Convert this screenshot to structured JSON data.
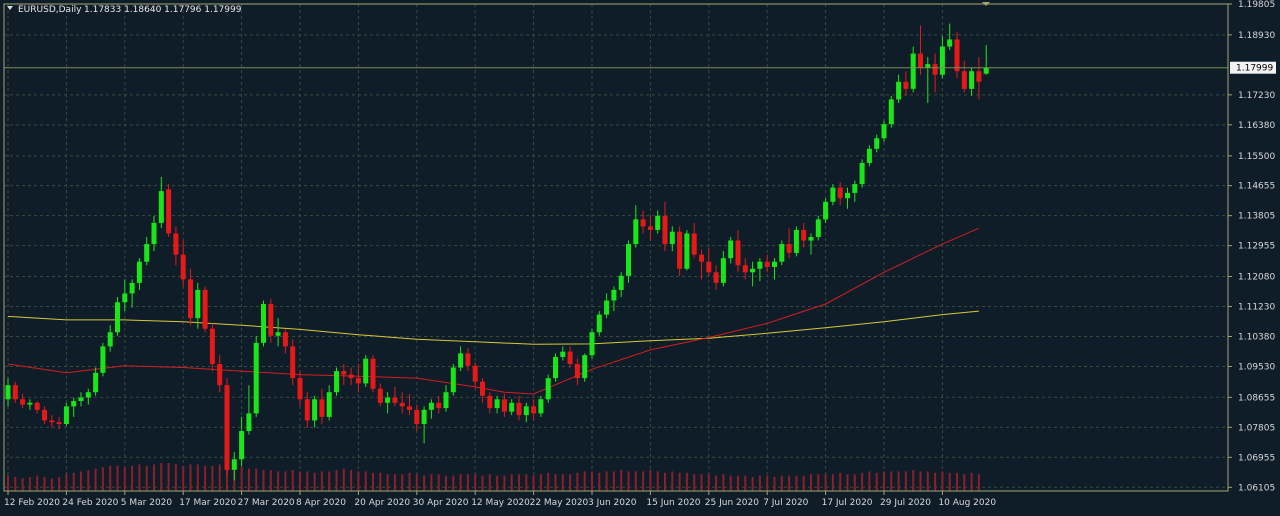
{
  "header": {
    "symbol": "EURUSD,Daily",
    "ohlc": "1.17833 1.18640 1.17796 1.17999"
  },
  "colors": {
    "background": "#0f1d29",
    "grid": "#3b4a3e",
    "frame": "#a5a56e",
    "bull": "#19e619",
    "bear": "#e61919",
    "ma_fast": "#d21e1e",
    "ma_slow": "#d8c83a",
    "volume": "#8b1f2a",
    "text": "#dcdcdc",
    "current_price_line": "#7f8b55",
    "current_price_box": "#f2f2f2"
  },
  "chart_data": {
    "type": "candlestick",
    "title": "EURUSD,Daily",
    "ylim": [
      1.06,
      1.19805
    ],
    "y_ticks": [
      "1.19805",
      "1.18930",
      "1.17230",
      "1.16380",
      "1.15500",
      "1.14655",
      "1.13805",
      "1.12955",
      "1.12080",
      "1.11230",
      "1.10380",
      "1.09530",
      "1.08655",
      "1.07805",
      "1.06955",
      "1.06105"
    ],
    "x_ticks": [
      "12 Feb 2020",
      "24 Feb 2020",
      "5 Mar 2020",
      "17 Mar 2020",
      "27 Mar 2020",
      "8 Apr 2020",
      "20 Apr 2020",
      "30 Apr 2020",
      "12 May 2020",
      "22 May 2020",
      "3 Jun 2020",
      "15 Jun 2020",
      "25 Jun 2020",
      "7 Jul 2020",
      "17 Jul 2020",
      "29 Jul 2020",
      "10 Aug 2020"
    ],
    "x_tick_bar_index": [
      0,
      8,
      16,
      24,
      32,
      40,
      48,
      56,
      64,
      72,
      80,
      88,
      96,
      104,
      112,
      120,
      128
    ],
    "current_price": "1.17999",
    "candles": [
      [
        1.086,
        1.092,
        1.084,
        1.09
      ],
      [
        1.09,
        1.091,
        1.085,
        1.086
      ],
      [
        1.086,
        1.0875,
        1.0835,
        1.0845
      ],
      [
        1.0845,
        1.086,
        1.083,
        1.085
      ],
      [
        1.085,
        1.0855,
        1.082,
        1.083
      ],
      [
        1.083,
        1.084,
        1.079,
        1.08
      ],
      [
        1.08,
        1.0815,
        1.078,
        1.0795
      ],
      [
        1.0795,
        1.081,
        1.0775,
        1.079
      ],
      [
        1.079,
        1.085,
        1.0785,
        1.084
      ],
      [
        1.084,
        1.0865,
        1.081,
        1.0855
      ],
      [
        1.0855,
        1.088,
        1.084,
        1.0865
      ],
      [
        1.0865,
        1.089,
        1.0845,
        1.088
      ],
      [
        1.088,
        1.095,
        1.087,
        1.0935
      ],
      [
        1.0935,
        1.102,
        1.0925,
        1.101
      ],
      [
        1.101,
        1.107,
        1.0995,
        1.105
      ],
      [
        1.105,
        1.115,
        1.104,
        1.1135
      ],
      [
        1.1135,
        1.12,
        1.111,
        1.116
      ],
      [
        1.116,
        1.12,
        1.112,
        1.119
      ],
      [
        1.119,
        1.126,
        1.117,
        1.125
      ],
      [
        1.125,
        1.132,
        1.124,
        1.13
      ],
      [
        1.13,
        1.138,
        1.128,
        1.136
      ],
      [
        1.136,
        1.149,
        1.1345,
        1.145
      ],
      [
        1.1455,
        1.147,
        1.132,
        1.133
      ],
      [
        1.133,
        1.135,
        1.124,
        1.127
      ],
      [
        1.127,
        1.131,
        1.118,
        1.12
      ],
      [
        1.12,
        1.123,
        1.107,
        1.109
      ],
      [
        1.109,
        1.119,
        1.106,
        1.117
      ],
      [
        1.117,
        1.118,
        1.105,
        1.106
      ],
      [
        1.106,
        1.1075,
        1.094,
        1.096
      ],
      [
        1.096,
        1.0985,
        1.088,
        1.09
      ],
      [
        1.09,
        1.092,
        1.0645,
        1.066
      ],
      [
        1.066,
        1.071,
        1.063,
        1.069
      ],
      [
        1.069,
        1.081,
        1.067,
        1.077
      ],
      [
        1.077,
        1.09,
        1.076,
        1.082
      ],
      [
        1.082,
        1.104,
        1.081,
        1.102
      ],
      [
        1.102,
        1.114,
        1.101,
        1.113
      ],
      [
        1.113,
        1.1145,
        1.102,
        1.104
      ],
      [
        1.104,
        1.109,
        1.101,
        1.105
      ],
      [
        1.105,
        1.106,
        1.099,
        1.101
      ],
      [
        1.101,
        1.103,
        1.09,
        1.092
      ],
      [
        1.092,
        1.094,
        1.084,
        1.086
      ],
      [
        1.086,
        1.088,
        1.078,
        1.08
      ],
      [
        1.08,
        1.087,
        1.078,
        1.086
      ],
      [
        1.086,
        1.089,
        1.079,
        1.081
      ],
      [
        1.081,
        1.09,
        1.08,
        1.088
      ],
      [
        1.088,
        1.095,
        1.087,
        1.094
      ],
      [
        1.094,
        1.096,
        1.09,
        1.093
      ],
      [
        1.093,
        1.095,
        1.09,
        1.092
      ],
      [
        1.092,
        1.096,
        1.088,
        1.0905
      ],
      [
        1.0905,
        1.0985,
        1.0895,
        1.0975
      ],
      [
        1.0975,
        1.0985,
        1.088,
        1.089
      ],
      [
        1.089,
        1.0905,
        1.084,
        1.085
      ],
      [
        1.085,
        1.088,
        1.082,
        1.0865
      ],
      [
        1.0865,
        1.0895,
        1.084,
        1.085
      ],
      [
        1.085,
        1.088,
        1.082,
        1.084
      ],
      [
        1.084,
        1.0875,
        1.0815,
        1.083
      ],
      [
        1.083,
        1.0845,
        1.077,
        1.079
      ],
      [
        1.079,
        1.084,
        1.0735,
        1.083
      ],
      [
        1.083,
        1.086,
        1.0805,
        1.085
      ],
      [
        1.085,
        1.087,
        1.082,
        1.0835
      ],
      [
        1.0835,
        1.09,
        1.0825,
        1.088
      ],
      [
        1.088,
        1.096,
        1.087,
        1.095
      ],
      [
        1.095,
        1.101,
        1.094,
        1.099
      ],
      [
        1.099,
        1.1005,
        1.094,
        1.0955
      ],
      [
        1.0955,
        1.0965,
        1.089,
        1.091
      ],
      [
        1.091,
        1.092,
        1.085,
        1.087
      ],
      [
        1.087,
        1.088,
        1.082,
        1.0835
      ],
      [
        1.0835,
        1.087,
        1.082,
        1.086
      ],
      [
        1.086,
        1.0875,
        1.081,
        1.0825
      ],
      [
        1.0825,
        1.086,
        1.0815,
        1.085
      ],
      [
        1.085,
        1.087,
        1.08,
        1.0815
      ],
      [
        1.0815,
        1.085,
        1.0795,
        1.084
      ],
      [
        1.084,
        1.086,
        1.08,
        1.082
      ],
      [
        1.082,
        1.087,
        1.081,
        1.086
      ],
      [
        1.086,
        1.093,
        1.085,
        1.092
      ],
      [
        1.092,
        1.099,
        1.091,
        1.098
      ],
      [
        1.098,
        1.101,
        1.097,
        1.0995
      ],
      [
        1.0995,
        1.101,
        1.095,
        1.096
      ],
      [
        1.096,
        1.0975,
        1.09,
        1.092
      ],
      [
        1.092,
        1.099,
        1.091,
        1.0985
      ],
      [
        1.0985,
        1.106,
        1.0975,
        1.105
      ],
      [
        1.105,
        1.111,
        1.104,
        1.11
      ],
      [
        1.11,
        1.116,
        1.109,
        1.114
      ],
      [
        1.114,
        1.118,
        1.111,
        1.117
      ],
      [
        1.117,
        1.122,
        1.115,
        1.121
      ],
      [
        1.121,
        1.131,
        1.119,
        1.13
      ],
      [
        1.13,
        1.141,
        1.129,
        1.137
      ],
      [
        1.137,
        1.1395,
        1.133,
        1.135
      ],
      [
        1.135,
        1.138,
        1.131,
        1.134
      ],
      [
        1.134,
        1.1395,
        1.133,
        1.138
      ],
      [
        1.138,
        1.142,
        1.128,
        1.13
      ],
      [
        1.13,
        1.135,
        1.128,
        1.1335
      ],
      [
        1.1335,
        1.135,
        1.121,
        1.123
      ],
      [
        1.123,
        1.134,
        1.1225,
        1.133
      ],
      [
        1.133,
        1.136,
        1.126,
        1.127
      ],
      [
        1.127,
        1.1285,
        1.12,
        1.125
      ],
      [
        1.125,
        1.129,
        1.121,
        1.122
      ],
      [
        1.122,
        1.124,
        1.117,
        1.119
      ],
      [
        1.119,
        1.128,
        1.118,
        1.126
      ],
      [
        1.126,
        1.132,
        1.1245,
        1.131
      ],
      [
        1.131,
        1.134,
        1.122,
        1.124
      ],
      [
        1.124,
        1.126,
        1.12,
        1.122
      ],
      [
        1.122,
        1.125,
        1.118,
        1.123
      ],
      [
        1.123,
        1.126,
        1.1195,
        1.125
      ],
      [
        1.125,
        1.127,
        1.122,
        1.1235
      ],
      [
        1.1235,
        1.126,
        1.12,
        1.125
      ],
      [
        1.125,
        1.131,
        1.124,
        1.13
      ],
      [
        1.13,
        1.1345,
        1.126,
        1.1275
      ],
      [
        1.1275,
        1.135,
        1.1265,
        1.134
      ],
      [
        1.134,
        1.136,
        1.129,
        1.131
      ],
      [
        1.131,
        1.133,
        1.127,
        1.132
      ],
      [
        1.132,
        1.138,
        1.131,
        1.137
      ],
      [
        1.137,
        1.143,
        1.136,
        1.142
      ],
      [
        1.142,
        1.147,
        1.141,
        1.146
      ],
      [
        1.146,
        1.1475,
        1.141,
        1.143
      ],
      [
        1.143,
        1.146,
        1.14,
        1.1445
      ],
      [
        1.1445,
        1.148,
        1.142,
        1.147
      ],
      [
        1.147,
        1.154,
        1.146,
        1.153
      ],
      [
        1.153,
        1.158,
        1.152,
        1.157
      ],
      [
        1.157,
        1.161,
        1.156,
        1.16
      ],
      [
        1.16,
        1.165,
        1.159,
        1.164
      ],
      [
        1.164,
        1.172,
        1.163,
        1.171
      ],
      [
        1.171,
        1.178,
        1.17,
        1.176
      ],
      [
        1.176,
        1.179,
        1.172,
        1.174
      ],
      [
        1.174,
        1.186,
        1.173,
        1.184
      ],
      [
        1.184,
        1.192,
        1.178,
        1.18
      ],
      [
        1.18,
        1.183,
        1.17,
        1.181
      ],
      [
        1.181,
        1.184,
        1.173,
        1.178
      ],
      [
        1.178,
        1.189,
        1.177,
        1.186
      ],
      [
        1.186,
        1.1925,
        1.185,
        1.188
      ],
      [
        1.188,
        1.19,
        1.177,
        1.179
      ],
      [
        1.179,
        1.182,
        1.173,
        1.174
      ],
      [
        1.174,
        1.18,
        1.172,
        1.179
      ],
      [
        1.179,
        1.183,
        1.171,
        1.176
      ],
      [
        1.1783,
        1.1864,
        1.178,
        1.18
      ]
    ],
    "ma_fast": [
      [
        0,
        1.096
      ],
      [
        8,
        1.0935
      ],
      [
        16,
        1.0955
      ],
      [
        24,
        1.095
      ],
      [
        32,
        1.094
      ],
      [
        40,
        1.093
      ],
      [
        48,
        1.0925
      ],
      [
        56,
        1.092
      ],
      [
        64,
        1.0895
      ],
      [
        68,
        1.088
      ],
      [
        72,
        1.0875
      ],
      [
        80,
        1.0945
      ],
      [
        88,
        1.1
      ],
      [
        96,
        1.1035
      ],
      [
        104,
        1.1075
      ],
      [
        112,
        1.113
      ],
      [
        120,
        1.122
      ],
      [
        128,
        1.13
      ],
      [
        133,
        1.1345
      ]
    ],
    "ma_slow": [
      [
        0,
        1.1095
      ],
      [
        8,
        1.1085
      ],
      [
        16,
        1.1085
      ],
      [
        24,
        1.108
      ],
      [
        32,
        1.107
      ],
      [
        40,
        1.1058
      ],
      [
        48,
        1.1043
      ],
      [
        56,
        1.103
      ],
      [
        64,
        1.1023
      ],
      [
        72,
        1.1016
      ],
      [
        80,
        1.1017
      ],
      [
        88,
        1.1026
      ],
      [
        96,
        1.1033
      ],
      [
        104,
        1.1047
      ],
      [
        112,
        1.1063
      ],
      [
        120,
        1.108
      ],
      [
        128,
        1.11
      ],
      [
        133,
        1.111
      ]
    ],
    "volume": [
      0.55,
      0.5,
      0.45,
      0.5,
      0.55,
      0.5,
      0.45,
      0.5,
      0.6,
      0.65,
      0.7,
      0.75,
      0.8,
      0.85,
      0.9,
      0.9,
      0.85,
      0.9,
      0.95,
      0.9,
      0.95,
      1.0,
      1.0,
      0.95,
      0.9,
      0.95,
      0.95,
      0.9,
      0.9,
      0.95,
      0.9,
      0.85,
      0.85,
      0.8,
      0.8,
      0.75,
      0.75,
      0.7,
      0.7,
      0.75,
      0.7,
      0.7,
      0.65,
      0.7,
      0.7,
      0.75,
      0.8,
      0.75,
      0.7,
      0.7,
      0.65,
      0.65,
      0.6,
      0.6,
      0.6,
      0.65,
      0.6,
      0.55,
      0.6,
      0.6,
      0.55,
      0.55,
      0.6,
      0.6,
      0.6,
      0.55,
      0.6,
      0.55,
      0.55,
      0.6,
      0.6,
      0.6,
      0.55,
      0.6,
      0.65,
      0.6,
      0.6,
      0.6,
      0.65,
      0.7,
      0.7,
      0.65,
      0.7,
      0.7,
      0.75,
      0.7,
      0.7,
      0.7,
      0.75,
      0.7,
      0.65,
      0.7,
      0.65,
      0.65,
      0.6,
      0.6,
      0.6,
      0.55,
      0.6,
      0.55,
      0.55,
      0.55,
      0.5,
      0.55,
      0.55,
      0.5,
      0.55,
      0.55,
      0.55,
      0.55,
      0.6,
      0.6,
      0.6,
      0.6,
      0.65,
      0.6,
      0.6,
      0.65,
      0.7,
      0.65,
      0.7,
      0.7,
      0.7,
      0.7,
      0.75,
      0.7,
      0.7,
      0.65,
      0.7,
      0.65,
      0.65,
      0.6,
      0.65,
      0.6
    ]
  }
}
